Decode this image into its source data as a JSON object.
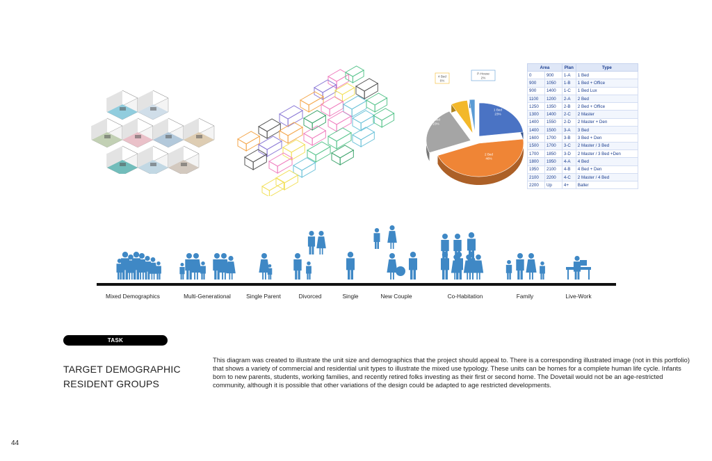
{
  "pie_chart": {
    "slices": [
      {
        "label": "1 Bed",
        "pct": "23%",
        "value": 23,
        "color": "#4a73c4"
      },
      {
        "label": "2 Bed",
        "pct": "46%",
        "value": 46,
        "color": "#ef8536"
      },
      {
        "label": "3 Bed",
        "pct": "23%",
        "value": 23,
        "color": "#a5a5a5"
      },
      {
        "label": "4 Bed",
        "pct": "6%",
        "value": 6,
        "color": "#f3b82a"
      },
      {
        "label": "P-House",
        "pct": "2%",
        "value": 2,
        "color": "#5b9bd5"
      }
    ]
  },
  "unit_table": {
    "headers": {
      "area": "Area",
      "plan": "Plan",
      "type": "Type"
    },
    "rows": [
      [
        "0",
        "900",
        "1-A",
        "1 Bed"
      ],
      [
        "900",
        "1050",
        "1-B",
        "1 Bed + Office"
      ],
      [
        "900",
        "1400",
        "1-C",
        "1 Bed Lux"
      ],
      [
        "1100",
        "1200",
        "2-A",
        "2 Bed"
      ],
      [
        "1250",
        "1350",
        "2-B",
        "2 Bed + Office"
      ],
      [
        "1300",
        "1400",
        "2-C",
        "2 Master"
      ],
      [
        "1400",
        "1550",
        "2-D",
        "2 Master + Den"
      ],
      [
        "1400",
        "1500",
        "3-A",
        "3 Bed"
      ],
      [
        "1600",
        "1700",
        "3-B",
        "3 Bed + Den"
      ],
      [
        "1500",
        "1700",
        "3-C",
        "2 Master / 3 Bed"
      ],
      [
        "1700",
        "1850",
        "3-D",
        "2 Master / 3 Bed +Den"
      ],
      [
        "1800",
        "1950",
        "4-A",
        "4 Bed"
      ],
      [
        "1950",
        "2100",
        "4-B",
        "4 Bed + Den"
      ],
      [
        "2100",
        "2200",
        "4-C",
        "2 Master / 4 Bed"
      ],
      [
        "2200",
        "Up",
        "4+",
        "Baller"
      ]
    ]
  },
  "demographics": {
    "groups": [
      "Mixed Demographics",
      "Multi-Generational",
      "Single Parent",
      "Divorced",
      "Single",
      "New Couple",
      "Co-Habitation",
      "Family",
      "Live-Work"
    ],
    "icon_color": "#3f88c5"
  },
  "task": {
    "pill_label": "TASK",
    "heading_line1": "TARGET DEMOGRAPHIC",
    "heading_line2": "RESIDENT GROUPS",
    "description": "This diagram was created to illustrate the unit size and demographics that the project should appeal to.  There is a corresponding illustrated image (not in this portfolio)  that shows a variety of commercial and residential unit types to illustrate the mixed use typology.  These units can be homes for  a complete human life cycle. Infants born to new parents, students, working families, and recently retired folks investing as their first or second home. The Dovetail would not be an age-restricted community, although it is possible that other variations of the design could be adapted to age restricted developments."
  },
  "page_number": "44"
}
